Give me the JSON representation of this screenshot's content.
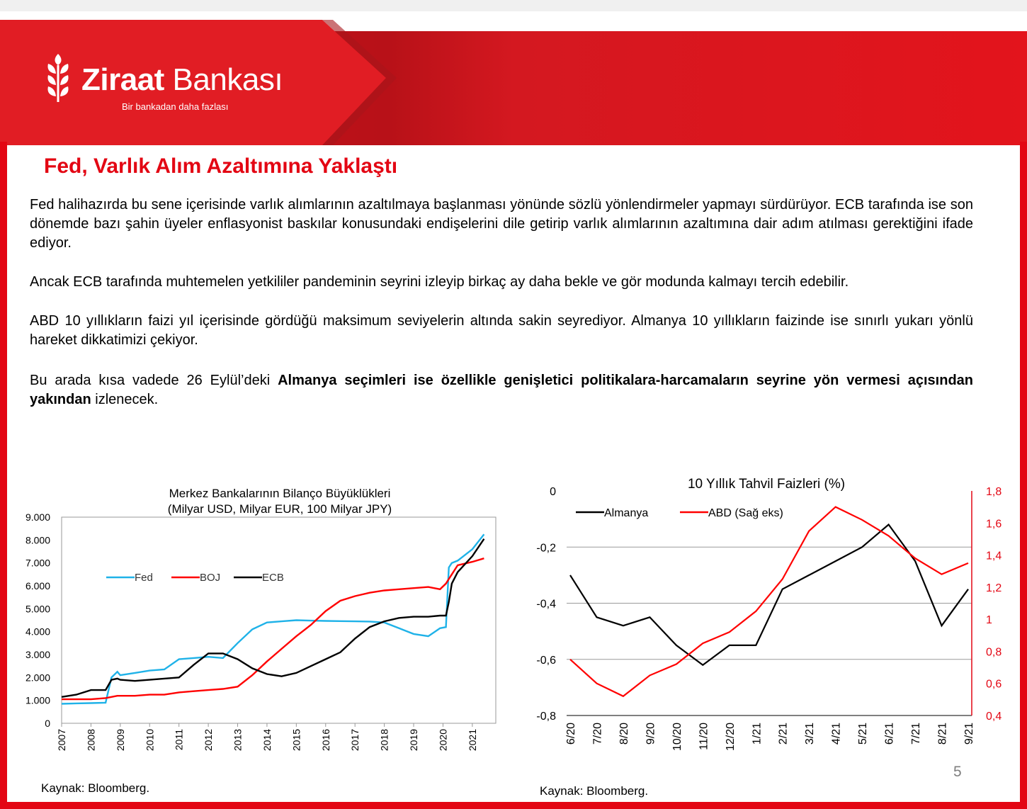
{
  "brand": {
    "name_bold": "Ziraat",
    "name_rest": " Bankası",
    "tagline": "Bir bankadan daha fazlası",
    "color": "#e30613"
  },
  "title": "Fed, Varlık Alım Azaltımına Yaklaştı",
  "paragraphs": {
    "p1": "Fed halihazırda bu sene içerisinde varlık alımlarının azaltılmaya başlanması yönünde sözlü yönlendirmeler yapmayı sürdürüyor. ECB tarafında ise son dönemde bazı şahin üyeler enflasyonist baskılar konusundaki endişelerini dile getirip varlık alımlarının azaltımına dair adım atılması gerektiğini ifade ediyor.",
    "p2": "Ancak ECB tarafında muhtemelen yetkililer pandeminin seyrini izleyip birkaç ay daha bekle ve gör modunda kalmayı tercih edebilir.",
    "p3": "ABD 10 yıllıkların faizi yıl içerisinde gördüğü maksimum seviyelerin altında sakin seyrediyor. Almanya 10 yıllıkların faizinde ise sınırlı yukarı yönlü hareket dikkatimizi çekiyor.",
    "p4_pre": "Bu arada kısa vadede 26 Eylül’deki ",
    "p4_bold": "Almanya seçimleri ise özellikle genişletici politikalara-harcamaların seyrine yön vermesi açısından yakından",
    "p4_post": " izlenecek."
  },
  "sources": {
    "left": "Kaynak: Bloomberg.",
    "right": "Kaynak: Bloomberg."
  },
  "page_number": "5",
  "chart_data": [
    {
      "type": "line",
      "title": "Merkez Bankalarının  Bilanço Büyüklükleri",
      "subtitle": "(Milyar USD, Milyar EUR, 100 Milyar JPY)",
      "x": [
        2007,
        2007.5,
        2008,
        2008.5,
        2008.7,
        2008.9,
        2009,
        2009.5,
        2010,
        2010.5,
        2011,
        2011.5,
        2012,
        2012.5,
        2013,
        2013.5,
        2014,
        2014.5,
        2015,
        2015.5,
        2016,
        2016.5,
        2017,
        2017.5,
        2018,
        2018.5,
        2019,
        2019.5,
        2019.9,
        2020.1,
        2020.2,
        2020.3,
        2020.5,
        2021,
        2021.4
      ],
      "xlim": [
        2007,
        2021.8
      ],
      "ylim": [
        0,
        9000
      ],
      "yticks": [
        0,
        1000,
        2000,
        3000,
        4000,
        5000,
        6000,
        7000,
        8000,
        9000
      ],
      "ytick_labels": [
        "0",
        "1.000",
        "2.000",
        "3.000",
        "4.000",
        "5.000",
        "6.000",
        "7.000",
        "8.000",
        "9.000"
      ],
      "xtick_labels": [
        "2007",
        "2008",
        "2009",
        "2010",
        "2011",
        "2012",
        "2013",
        "2014",
        "2015",
        "2016",
        "2017",
        "2018",
        "2019",
        "2020",
        "2021"
      ],
      "legend_position": "top-left",
      "series": [
        {
          "name": "Fed",
          "color": "#1fb2e8",
          "values": [
            850,
            870,
            880,
            900,
            2000,
            2250,
            2100,
            2200,
            2300,
            2350,
            2800,
            2850,
            2900,
            2850,
            3500,
            4100,
            4400,
            4450,
            4500,
            4480,
            4470,
            4460,
            4450,
            4440,
            4400,
            4150,
            3900,
            3800,
            4150,
            4200,
            6800,
            7000,
            7100,
            7600,
            8250
          ]
        },
        {
          "name": "BOJ",
          "color": "#ff0000",
          "values": [
            1050,
            1050,
            1050,
            1100,
            1150,
            1200,
            1200,
            1200,
            1250,
            1250,
            1350,
            1400,
            1450,
            1500,
            1600,
            2100,
            2700,
            3250,
            3800,
            4300,
            4900,
            5350,
            5550,
            5700,
            5800,
            5850,
            5900,
            5950,
            5850,
            6100,
            6300,
            6500,
            6900,
            7050,
            7200
          ]
        },
        {
          "name": "ECB",
          "color": "#000000",
          "values": [
            1150,
            1250,
            1450,
            1450,
            1900,
            1950,
            1900,
            1850,
            1900,
            1950,
            2000,
            2550,
            3050,
            3050,
            2800,
            2400,
            2150,
            2050,
            2200,
            2500,
            2800,
            3100,
            3700,
            4200,
            4450,
            4600,
            4650,
            4650,
            4700,
            4700,
            5300,
            6100,
            6600,
            7300,
            8050
          ]
        }
      ]
    },
    {
      "type": "line",
      "title": "10 Yıllık Tahvil Faizleri (%)",
      "x": [
        "6/20",
        "7/20",
        "8/20",
        "9/20",
        "10/20",
        "11/20",
        "12/20",
        "1/21",
        "2/21",
        "3/21",
        "4/21",
        "5/21",
        "6/21",
        "7/21",
        "8/21",
        "9/21"
      ],
      "xtick_labels": [
        "6/20",
        "7/20",
        "8/20",
        "9/20",
        "10/20",
        "11/20",
        "12/20",
        "1/21",
        "2/21",
        "3/21",
        "4/21",
        "5/21",
        "6/21",
        "7/21",
        "8/21",
        "9/21"
      ],
      "ylim_left": [
        -0.8,
        0
      ],
      "yticks_left": [
        "0",
        "-0,2",
        "-0,4",
        "-0,6",
        "-0,8"
      ],
      "ylim_right": [
        0.4,
        1.8
      ],
      "yticks_right": [
        "1,8",
        "1,6",
        "1,4",
        "1,2",
        "1",
        "0,8",
        "0,6",
        "0,4"
      ],
      "grid": "horizontal",
      "legend_position": "top-left",
      "series": [
        {
          "name": "Almanya",
          "axis": "left",
          "color": "#000000",
          "values": [
            -0.3,
            -0.45,
            -0.48,
            -0.45,
            -0.55,
            -0.62,
            -0.55,
            -0.55,
            -0.35,
            -0.3,
            -0.25,
            -0.2,
            -0.12,
            -0.25,
            -0.48,
            -0.35
          ]
        },
        {
          "name": "ABD (Sağ eks)",
          "axis": "right",
          "color": "#ff0000",
          "values": [
            0.75,
            0.6,
            0.52,
            0.65,
            0.72,
            0.85,
            0.92,
            1.05,
            1.25,
            1.55,
            1.7,
            1.62,
            1.52,
            1.38,
            1.28,
            1.35
          ]
        }
      ]
    }
  ]
}
